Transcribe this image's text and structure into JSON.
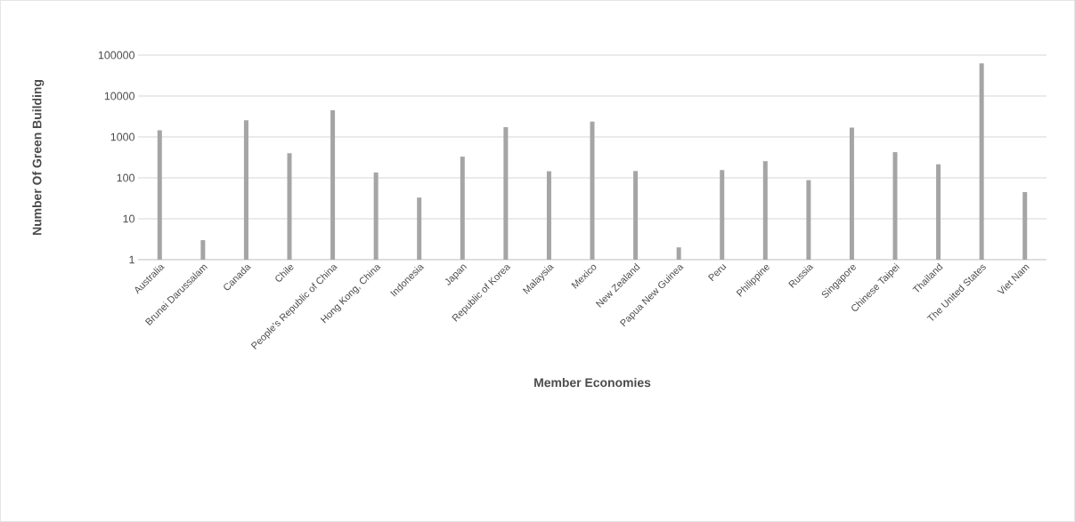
{
  "chart_data": {
    "type": "bar",
    "xlabel": "Member Economies",
    "ylabel": "Number Of Green Building",
    "categories": [
      "Australia",
      "Brunei Darussalam",
      "Canada",
      "Chile",
      "People's Republic of China",
      "Hong Kong, China",
      "Indonesia",
      "Japan",
      "Republic of Korea",
      "Malaysia",
      "Mexico",
      "New Zealand",
      "Papua New Guinea",
      "Peru",
      "Philippine",
      "Russia",
      "Singapore",
      "Chinese Taipei",
      "Thailand",
      "The United States",
      "Viet Nam"
    ],
    "values": [
      1450,
      3,
      2550,
      400,
      4500,
      135,
      33,
      330,
      1730,
      145,
      2380,
      147,
      2,
      155,
      256,
      88,
      1690,
      425,
      215,
      63000,
      45
    ],
    "color": "#a5a5a5",
    "log": "y",
    "ylim": [
      1,
      100000
    ],
    "yticks": [
      1,
      10,
      100,
      1000,
      10000,
      100000
    ],
    "grid": "y"
  }
}
